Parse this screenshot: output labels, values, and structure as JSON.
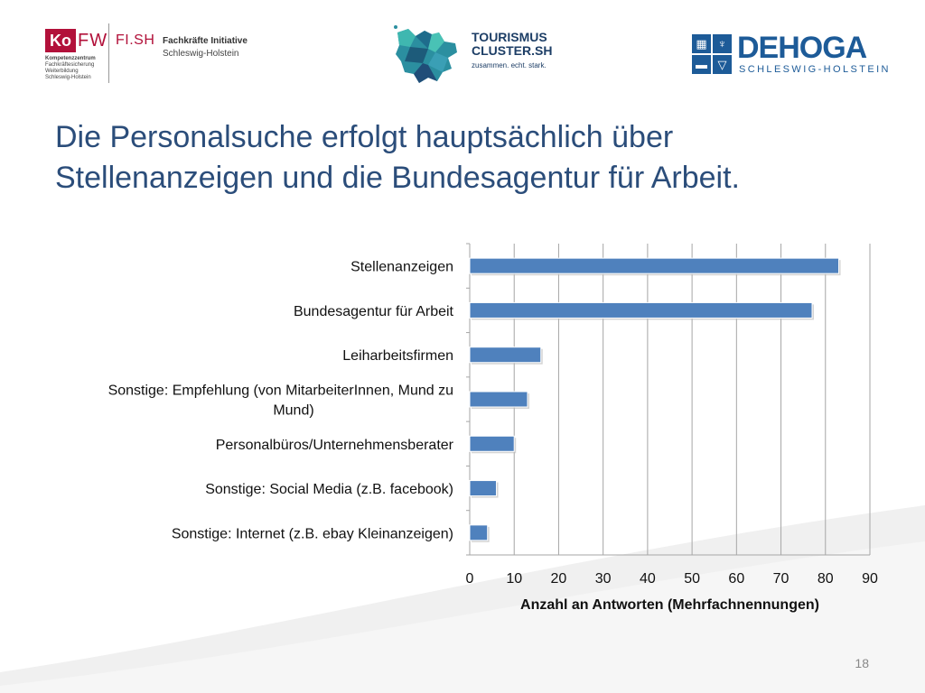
{
  "logos": {
    "kofw": {
      "ko": "Ko",
      "fw": "FW",
      "sub_title": "Kompetenzzentrum",
      "sub_lines": [
        "Fachkräftesicherung",
        "Weiterbildung",
        "Schleswig-Holstein"
      ],
      "fish": "FI.SH",
      "fish_name": "Fachkräfte Initiative",
      "fish_region": "Schleswig-Holstein"
    },
    "tourismus": {
      "line1": "TOURISMUS",
      "line2": "CLUSTER.SH",
      "slogan": "zusammen. echt. stark."
    },
    "dehoga": {
      "name": "DEHOGA",
      "region": "SCHLESWIG-HOLSTEIN"
    }
  },
  "slide": {
    "title_line1": "Die Personalsuche erfolgt hauptsächlich über",
    "title_line2": "Stellenanzeigen und die Bundesagentur für Arbeit.",
    "page_number": "18"
  },
  "colors": {
    "bar": "#4f81bd",
    "title": "#2b4d7a",
    "grid": "#a6a6a6"
  },
  "chart_data": {
    "type": "bar",
    "orientation": "horizontal",
    "categories": [
      "Stellenanzeigen",
      "Bundesagentur für Arbeit",
      "Leiharbeitsfirmen",
      "Sonstige: Empfehlung (von MitarbeiterInnen, Mund zu Mund)",
      "Personalbüros/Unternehmensberater",
      "Sonstige: Social Media (z.B. facebook)",
      "Sonstige: Internet (z.B. ebay Kleinanzeigen)"
    ],
    "category_label_lines": [
      [
        "Stellenanzeigen"
      ],
      [
        "Bundesagentur für Arbeit"
      ],
      [
        "Leiharbeitsfirmen"
      ],
      [
        "Sonstige: Empfehlung (von MitarbeiterInnen, Mund zu",
        "Mund)"
      ],
      [
        "Personalbüros/Unternehmensberater"
      ],
      [
        "Sonstige: Social Media (z.B. facebook)"
      ],
      [
        "Sonstige: Internet (z.B. ebay Kleinanzeigen)"
      ]
    ],
    "values": [
      83,
      77,
      16,
      13,
      10,
      6,
      4
    ],
    "xlim": [
      0,
      90
    ],
    "xticks": [
      0,
      10,
      20,
      30,
      40,
      50,
      60,
      70,
      80,
      90
    ],
    "xlabel": "Anzahl an Antworten (Mehrfachnennungen)",
    "ylabel": "",
    "title": "",
    "grid": true,
    "legend": "none"
  }
}
